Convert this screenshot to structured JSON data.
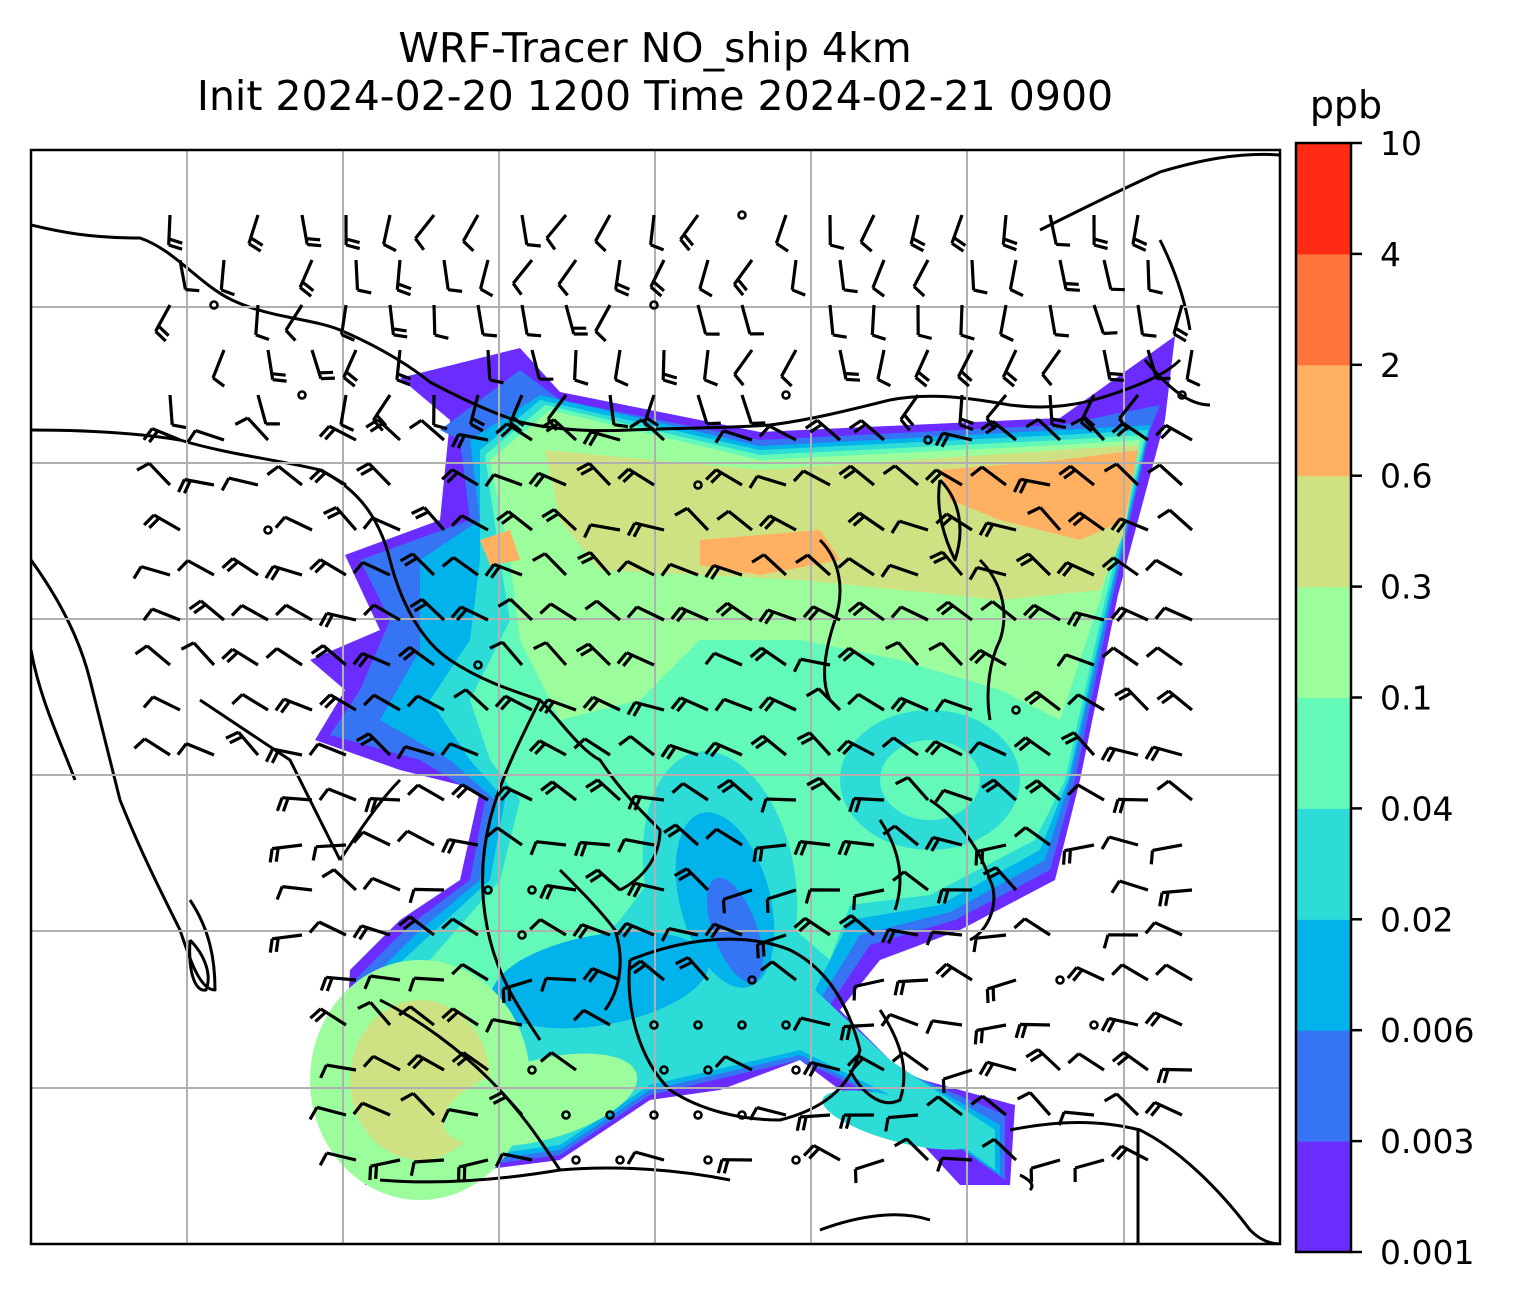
{
  "title": {
    "line1": "WRF-Tracer NO_ship 4km",
    "line2": "Init 2024-02-20 1200 Time 2024-02-21 0900"
  },
  "colorbar": {
    "unit": "ppb",
    "levels": [
      "0.001",
      "0.003",
      "0.006",
      "0.02",
      "0.04",
      "0.1",
      "0.3",
      "0.6",
      "2",
      "4",
      "10"
    ],
    "colors": [
      "#6a2cff",
      "#3575f3",
      "#02b2ea",
      "#2ddcd6",
      "#62f9b9",
      "#9cfd9c",
      "#cfe283",
      "#ffb061",
      "#ff733c",
      "#ff2b15"
    ]
  },
  "map": {
    "gridlines": true,
    "background": "#ffffff",
    "coastline_color": "#000000",
    "grid_color": "#b0b0b0",
    "barb_color": "#000000"
  }
}
